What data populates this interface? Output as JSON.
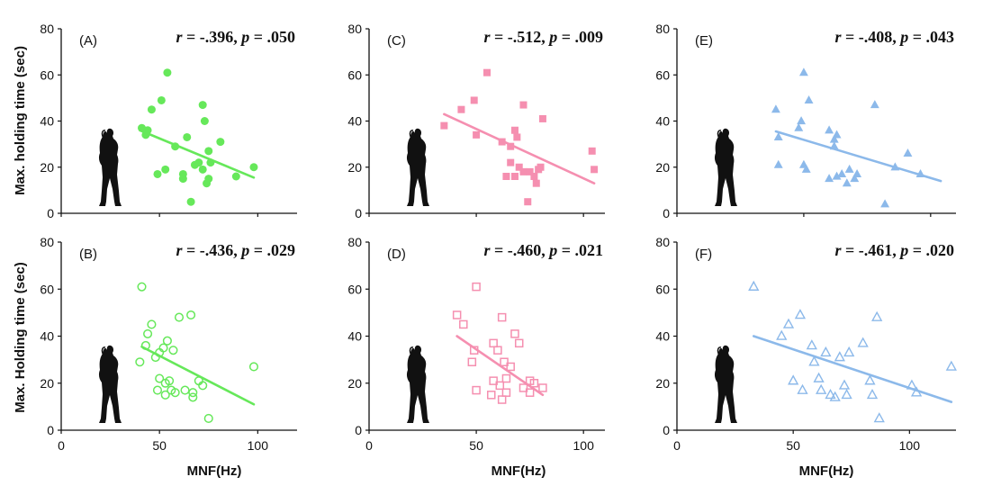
{
  "figure": {
    "ylabels": [
      "Max. holding time (sec)",
      "Max. Holding time (sec)"
    ],
    "xlabel": "MNF(Hz)"
  },
  "chart_data": [
    {
      "type": "scatter",
      "panel": "(A)",
      "row": 0,
      "col": 0,
      "stat": {
        "r": "-.396",
        "p": ".050"
      },
      "color": "#66e85a",
      "marker": "circle",
      "filled": true,
      "xlim": [
        0,
        120
      ],
      "ylim": [
        0,
        80
      ],
      "xticks": [
        0,
        50,
        100
      ],
      "yticks": [
        0,
        20,
        40,
        60,
        80
      ],
      "points": [
        [
          41,
          37
        ],
        [
          44,
          36
        ],
        [
          43,
          34
        ],
        [
          46,
          45
        ],
        [
          51,
          49
        ],
        [
          54,
          61
        ],
        [
          49,
          17
        ],
        [
          53,
          19
        ],
        [
          58,
          29
        ],
        [
          62,
          17
        ],
        [
          62,
          15
        ],
        [
          64,
          33
        ],
        [
          66,
          5
        ],
        [
          68,
          21
        ],
        [
          70,
          22
        ],
        [
          72,
          19
        ],
        [
          72,
          47
        ],
        [
          73,
          40
        ],
        [
          74,
          13
        ],
        [
          75,
          27
        ],
        [
          75,
          15
        ],
        [
          76,
          22
        ],
        [
          81,
          31
        ],
        [
          89,
          16
        ],
        [
          98,
          20
        ]
      ],
      "fit": [
        [
          40,
          36
        ],
        [
          98,
          15.5
        ]
      ]
    },
    {
      "type": "scatter",
      "panel": "(C)",
      "row": 0,
      "col": 1,
      "stat": {
        "r": "-.512",
        "p": ".009"
      },
      "color": "#f58fb0",
      "marker": "square",
      "filled": true,
      "xlim": [
        0,
        110
      ],
      "ylim": [
        0,
        80
      ],
      "xticks": [
        0,
        50,
        100
      ],
      "yticks": [
        0,
        20,
        40,
        60,
        80
      ],
      "points": [
        [
          35,
          38
        ],
        [
          43,
          45
        ],
        [
          49,
          49
        ],
        [
          50,
          34
        ],
        [
          55,
          61
        ],
        [
          62,
          31
        ],
        [
          64,
          16
        ],
        [
          66,
          22
        ],
        [
          66,
          29
        ],
        [
          68,
          16
        ],
        [
          68,
          36
        ],
        [
          69,
          33
        ],
        [
          70,
          20
        ],
        [
          72,
          18
        ],
        [
          72,
          47
        ],
        [
          74,
          5
        ],
        [
          75,
          18
        ],
        [
          77,
          16
        ],
        [
          78,
          13
        ],
        [
          79,
          19
        ],
        [
          80,
          20
        ],
        [
          81,
          41
        ],
        [
          104,
          27
        ],
        [
          105,
          19
        ]
      ],
      "fit": [
        [
          35,
          43
        ],
        [
          105,
          13
        ]
      ]
    },
    {
      "type": "scatter",
      "panel": "(E)",
      "row": 0,
      "col": 2,
      "stat": {
        "r": "-.408",
        "p": ".043"
      },
      "color": "#8cb9ea",
      "marker": "triangle",
      "filled": true,
      "xlim": [
        0,
        110
      ],
      "ylim": [
        0,
        80
      ],
      "xticks": [
        0,
        50,
        100
      ],
      "yticks": [
        0,
        20,
        40,
        60,
        80
      ],
      "points": [
        [
          39,
          45
        ],
        [
          40,
          33
        ],
        [
          40,
          21
        ],
        [
          48,
          37
        ],
        [
          49,
          40
        ],
        [
          50,
          21
        ],
        [
          51,
          19
        ],
        [
          50,
          61
        ],
        [
          52,
          49
        ],
        [
          60,
          15
        ],
        [
          60,
          36
        ],
        [
          62,
          32
        ],
        [
          62,
          29
        ],
        [
          63,
          16
        ],
        [
          63,
          34
        ],
        [
          65,
          17
        ],
        [
          67,
          13
        ],
        [
          68,
          19
        ],
        [
          70,
          15
        ],
        [
          71,
          17
        ],
        [
          78,
          47
        ],
        [
          82,
          4
        ],
        [
          86,
          20
        ],
        [
          91,
          26
        ],
        [
          96,
          17
        ]
      ],
      "fit": [
        [
          39,
          35.5
        ],
        [
          104,
          14
        ]
      ]
    },
    {
      "type": "scatter",
      "panel": "(B)",
      "row": 1,
      "col": 0,
      "stat": {
        "r": "-.436",
        "p": ".029"
      },
      "color": "#66e85a",
      "marker": "circle",
      "filled": false,
      "xlim": [
        0,
        120
      ],
      "ylim": [
        0,
        80
      ],
      "xticks": [
        0,
        50,
        100
      ],
      "yticks": [
        0,
        20,
        40,
        60,
        80
      ],
      "points": [
        [
          40,
          29
        ],
        [
          41,
          61
        ],
        [
          43,
          36
        ],
        [
          44,
          41
        ],
        [
          46,
          45
        ],
        [
          48,
          31
        ],
        [
          49,
          17
        ],
        [
          50,
          33
        ],
        [
          50,
          22
        ],
        [
          52,
          35
        ],
        [
          53,
          20
        ],
        [
          53,
          15
        ],
        [
          54,
          38
        ],
        [
          55,
          21
        ],
        [
          56,
          17
        ],
        [
          57,
          34
        ],
        [
          58,
          16
        ],
        [
          60,
          48
        ],
        [
          63,
          17
        ],
        [
          66,
          49
        ],
        [
          67,
          14
        ],
        [
          67,
          16
        ],
        [
          70,
          21
        ],
        [
          72,
          19
        ],
        [
          75,
          5
        ],
        [
          98,
          27
        ]
      ],
      "fit": [
        [
          41,
          35.5
        ],
        [
          98,
          11
        ]
      ]
    },
    {
      "type": "scatter",
      "panel": "(D)",
      "row": 1,
      "col": 1,
      "stat": {
        "r": "-.460",
        "p": ".021"
      },
      "color": "#f58fb0",
      "marker": "square",
      "filled": false,
      "xlim": [
        0,
        110
      ],
      "ylim": [
        0,
        80
      ],
      "xticks": [
        0,
        50,
        100
      ],
      "yticks": [
        0,
        20,
        40,
        60,
        80
      ],
      "points": [
        [
          41,
          49
        ],
        [
          44,
          45
        ],
        [
          48,
          29
        ],
        [
          49,
          34
        ],
        [
          50,
          17
        ],
        [
          50,
          61
        ],
        [
          57,
          15
        ],
        [
          58,
          21
        ],
        [
          58,
          37
        ],
        [
          60,
          34
        ],
        [
          61,
          19
        ],
        [
          62,
          48
        ],
        [
          62,
          13
        ],
        [
          63,
          29
        ],
        [
          64,
          16
        ],
        [
          64,
          22
        ],
        [
          66,
          27
        ],
        [
          68,
          41
        ],
        [
          70,
          37
        ],
        [
          72,
          18
        ],
        [
          75,
          21
        ],
        [
          75,
          16
        ],
        [
          77,
          20
        ],
        [
          81,
          18
        ]
      ],
      "fit": [
        [
          41,
          40
        ],
        [
          81,
          15
        ]
      ]
    },
    {
      "type": "scatter",
      "panel": "(F)",
      "row": 1,
      "col": 2,
      "stat": {
        "r": "-.461",
        "p": ".020"
      },
      "color": "#8cb9ea",
      "marker": "triangle",
      "filled": false,
      "xlim": [
        0,
        120
      ],
      "ylim": [
        0,
        80
      ],
      "xticks": [
        0,
        50,
        100
      ],
      "yticks": [
        0,
        20,
        40,
        60,
        80
      ],
      "points": [
        [
          33,
          61
        ],
        [
          45,
          40
        ],
        [
          48,
          45
        ],
        [
          50,
          21
        ],
        [
          53,
          49
        ],
        [
          54,
          17
        ],
        [
          58,
          36
        ],
        [
          59,
          29
        ],
        [
          61,
          22
        ],
        [
          62,
          17
        ],
        [
          64,
          33
        ],
        [
          66,
          15
        ],
        [
          68,
          14
        ],
        [
          70,
          31
        ],
        [
          72,
          19
        ],
        [
          73,
          15
        ],
        [
          74,
          33
        ],
        [
          80,
          37
        ],
        [
          83,
          21
        ],
        [
          84,
          15
        ],
        [
          86,
          48
        ],
        [
          87,
          5
        ],
        [
          101,
          19
        ],
        [
          103,
          16
        ],
        [
          118,
          27
        ]
      ],
      "fit": [
        [
          33,
          40
        ],
        [
          118,
          12
        ]
      ]
    }
  ]
}
